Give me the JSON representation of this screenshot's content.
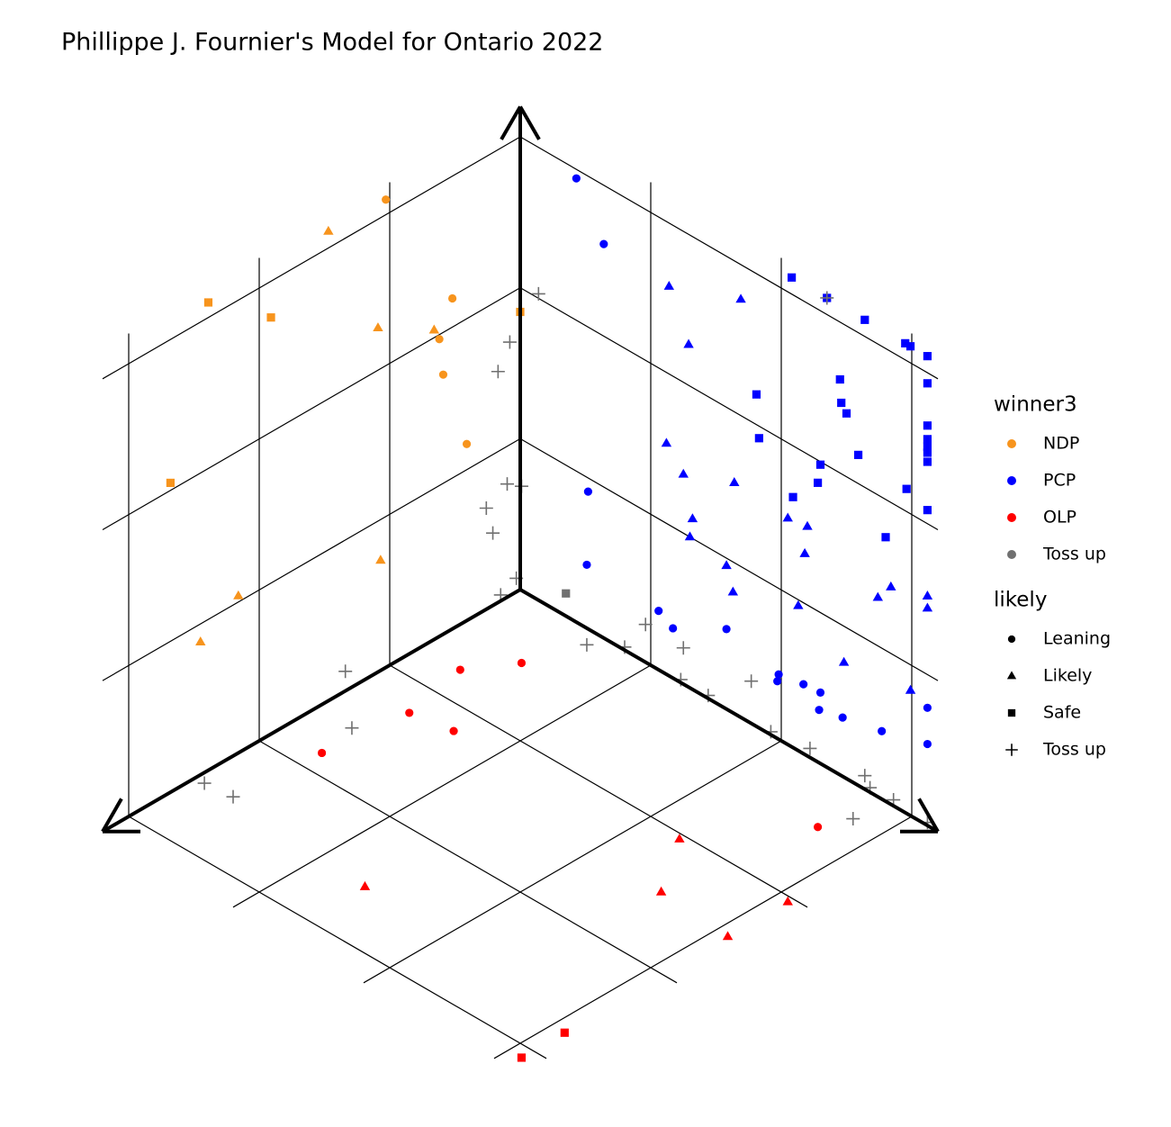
{
  "chart_data": {
    "type": "scatter3d",
    "title": "Phillippe J. Fournier's Model for Ontario 2022",
    "xlim": [
      0,
      3
    ],
    "ylim": [
      0,
      3
    ],
    "zlim": [
      0,
      3
    ],
    "xticks": [
      0,
      1,
      2,
      3
    ],
    "yticks": [
      0,
      1,
      2,
      3
    ],
    "zticks": [
      0,
      1,
      2,
      3
    ],
    "grid": true,
    "legend_position": "right",
    "legends": [
      {
        "title": "winner3",
        "items": [
          {
            "name": "NDP",
            "color": "#f7941d"
          },
          {
            "name": "PCP",
            "color": "#0000ff"
          },
          {
            "name": "OLP",
            "color": "#ff0000"
          },
          {
            "name": "Toss up",
            "color": "#707070"
          }
        ]
      },
      {
        "title": "likely",
        "items": [
          {
            "name": "Leaning",
            "shape": "circle"
          },
          {
            "name": "Likely",
            "shape": "triangle"
          },
          {
            "name": "Safe",
            "shape": "square"
          },
          {
            "name": "Toss up",
            "shape": "plus"
          }
        ]
      }
    ],
    "series": [
      {
        "name": "NDP",
        "color": "#f7941d",
        "x": [
          1.03,
          1.47,
          2.39,
          1.91,
          0.52,
          1.09,
          0.66,
          0.62,
          0.59,
          0,
          0.41,
          2.68,
          1.07,
          2.16,
          2.45
        ],
        "y": [
          0,
          0,
          0,
          0,
          0,
          0,
          0,
          0,
          0,
          0,
          0,
          0,
          0,
          0,
          0
        ],
        "z": [
          3.1,
          3.11,
          3.1,
          2.76,
          2.19,
          2.28,
          2.05,
          1.97,
          1.72,
          1.84,
          1.17,
          2.05,
          0.73,
          1.04,
          0.88
        ],
        "likely": [
          "Leaning",
          "Likely",
          "Safe",
          "Safe",
          "Leaning",
          "Likely",
          "Likely",
          "Leaning",
          "Leaning",
          "Safe",
          "Leaning",
          "Safe",
          "Likely",
          "Likely",
          "Likely"
        ]
      },
      {
        "name": "PCP",
        "color": "#0000ff",
        "x": [
          0,
          0,
          0,
          0,
          0,
          0,
          0,
          0,
          0,
          0,
          0,
          0,
          0,
          0,
          0,
          0,
          0,
          0,
          0,
          0,
          0,
          0,
          0,
          0,
          0,
          0,
          0,
          0,
          0,
          0,
          0,
          0,
          0,
          0,
          0,
          0,
          0,
          0,
          0,
          0,
          0,
          0,
          0,
          0,
          0,
          0,
          0,
          0,
          0,
          0,
          0,
          0,
          0,
          0,
          0,
          0,
          0,
          0,
          0,
          0
        ],
        "y": [
          0.43,
          0.64,
          0.52,
          0.51,
          1.06,
          1.17,
          1.58,
          1.98,
          1.97,
          2.17,
          2.3,
          2.29,
          2.47,
          2.77,
          3.12,
          3.12,
          1.14,
          1.69,
          1.29,
          1.12,
          1.25,
          1.64,
          1.32,
          1.3,
          2.05,
          2.2,
          2.18,
          1.58,
          1.63,
          2.13,
          2.74,
          2.84,
          3.12,
          3.12,
          2.48,
          2.99,
          2.08,
          2.35,
          2.64,
          2.95,
          2.99,
          3.12,
          3.12,
          2.45,
          1.81,
          2.46,
          2.5,
          1.83,
          3.12,
          3.12,
          3.12,
          3.12,
          3.12,
          2.59,
          2.3,
          2.28,
          2.09,
          2.96,
          3.12,
          2.8
        ],
        "z": [
          2.94,
          2.61,
          0.91,
          0.42,
          0.39,
          0.33,
          0.53,
          0.43,
          0.38,
          0.46,
          0.47,
          0.35,
          0.39,
          0.45,
          0.78,
          0.54,
          2.58,
          2.77,
          2.27,
          1.53,
          1.39,
          1.53,
          1.13,
          1.0,
          1.5,
          1.52,
          1.33,
          0.95,
          0.8,
          0.96,
          1.32,
          1.44,
          1.52,
          1.44,
          0.76,
          0.83,
          3.11,
          3.11,
          3.11,
          3.11,
          3.11,
          3.11,
          2.93,
          2.62,
          2.2,
          2.47,
          2.42,
          1.92,
          2.65,
          2.56,
          2.51,
          2.47,
          2.41,
          2.19,
          1.98,
          1.85,
          1.66,
          2.15,
          2.09,
          1.75
        ],
        "likely": [
          "Leaning",
          "Leaning",
          "Leaning",
          "Leaning",
          "Leaning",
          "Leaning",
          "Leaning",
          "Leaning",
          "Leaning",
          "Leaning",
          "Leaning",
          "Leaning",
          "Leaning",
          "Leaning",
          "Leaning",
          "Leaning",
          "Likely",
          "Likely",
          "Likely",
          "Likely",
          "Likely",
          "Likely",
          "Likely",
          "Likely",
          "Likely",
          "Likely",
          "Likely",
          "Likely",
          "Likely",
          "Likely",
          "Likely",
          "Likely",
          "Likely",
          "Likely",
          "Likely",
          "Likely",
          "Safe",
          "Safe",
          "Safe",
          "Safe",
          "Safe",
          "Safe",
          "Safe",
          "Safe",
          "Safe",
          "Safe",
          "Safe",
          "Safe",
          "Safe",
          "Safe",
          "Safe",
          "Safe",
          "Safe",
          "Safe",
          "Safe",
          "Safe",
          "Safe",
          "Safe",
          "Safe",
          "Safe"
        ]
      },
      {
        "name": "OLP",
        "color": "#ff0000",
        "x": [
          0.76,
          0.48,
          1.24,
          1.19,
          1.84,
          0.43,
          1.04,
          2.56,
          1.46,
          1.04,
          1.5,
          2.76,
          3.09
        ],
        "y": [
          0.3,
          0.49,
          0.39,
          0.68,
          0.32,
          2.71,
          2.26,
          1.37,
          2.54,
          3.09,
          3.09,
          3.1,
          3.1
        ],
        "z": [
          0,
          0,
          0,
          0,
          0,
          0,
          0,
          0,
          0,
          0,
          0,
          0,
          0
        ],
        "likely": [
          "Leaning",
          "Leaning",
          "Leaning",
          "Leaning",
          "Leaning",
          "Leaning",
          "Likely",
          "Likely",
          "Likely",
          "Likely",
          "Likely",
          "Safe",
          "Safe"
        ]
      },
      {
        "name": "Toss up",
        "color": "#707070",
        "x": [
          0,
          0,
          0,
          0,
          0,
          0,
          0,
          0,
          0,
          0,
          0,
          0,
          0,
          0,
          0,
          0,
          0.08,
          0.17,
          0.1,
          0.26,
          0.21,
          0.03,
          0.15,
          1.34,
          1.56,
          2.49,
          2.47,
          0.11,
          0.24
        ],
        "y": [
          0.14,
          0.01,
          0.8,
          0.96,
          1.25,
          1.23,
          1.44,
          1.77,
          1.92,
          2.22,
          2.64,
          2.68,
          2.86,
          3.12,
          2.35,
          0.35,
          0,
          0,
          0,
          0,
          0,
          0,
          0,
          0,
          0.27,
          0.07,
          0.27,
          0.62,
          2.79
        ],
        "z": [
          2.03,
          0.69,
          0.02,
          0.25,
          0.24,
          0.02,
          0.02,
          0.28,
          0.02,
          0.06,
          0.09,
          0.03,
          0.04,
          0.02,
          3.11,
          0.15,
          1.68,
          1.53,
          0.75,
          0.67,
          0.48,
          0.09,
          0.04,
          0.13,
          0,
          0,
          0,
          0,
          0
        ],
        "likely": [
          "Toss up",
          "Toss up",
          "Toss up",
          "Toss up",
          "Toss up",
          "Toss up",
          "Toss up",
          "Toss up",
          "Toss up",
          "Toss up",
          "Toss up",
          "Toss up",
          "Toss up",
          "Toss up",
          "Toss up",
          "Safe",
          "Toss up",
          "Toss up",
          "Toss up",
          "Toss up",
          "Toss up",
          "Toss up",
          "Toss up",
          "Toss up",
          "Toss up",
          "Toss up",
          "Toss up",
          "Toss up",
          "Toss up"
        ]
      }
    ]
  }
}
